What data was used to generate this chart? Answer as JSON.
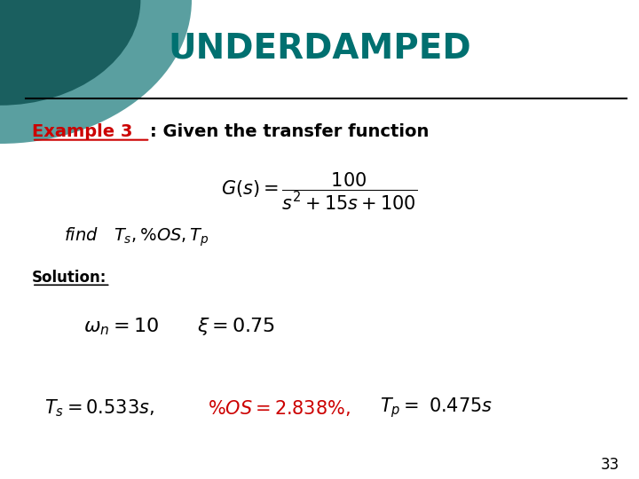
{
  "title": "UNDERDAMPED",
  "title_color": "#007070",
  "title_fontsize": 28,
  "background_color": "#ffffff",
  "example_label": "Example 3",
  "example_label_color": "#cc0000",
  "example_text": ": Given the transfer function",
  "solution_label": "Solution:",
  "page_number": "33",
  "wedge_dark_color": "#1a5f5f",
  "wedge_light_color": "#5a9fa0"
}
